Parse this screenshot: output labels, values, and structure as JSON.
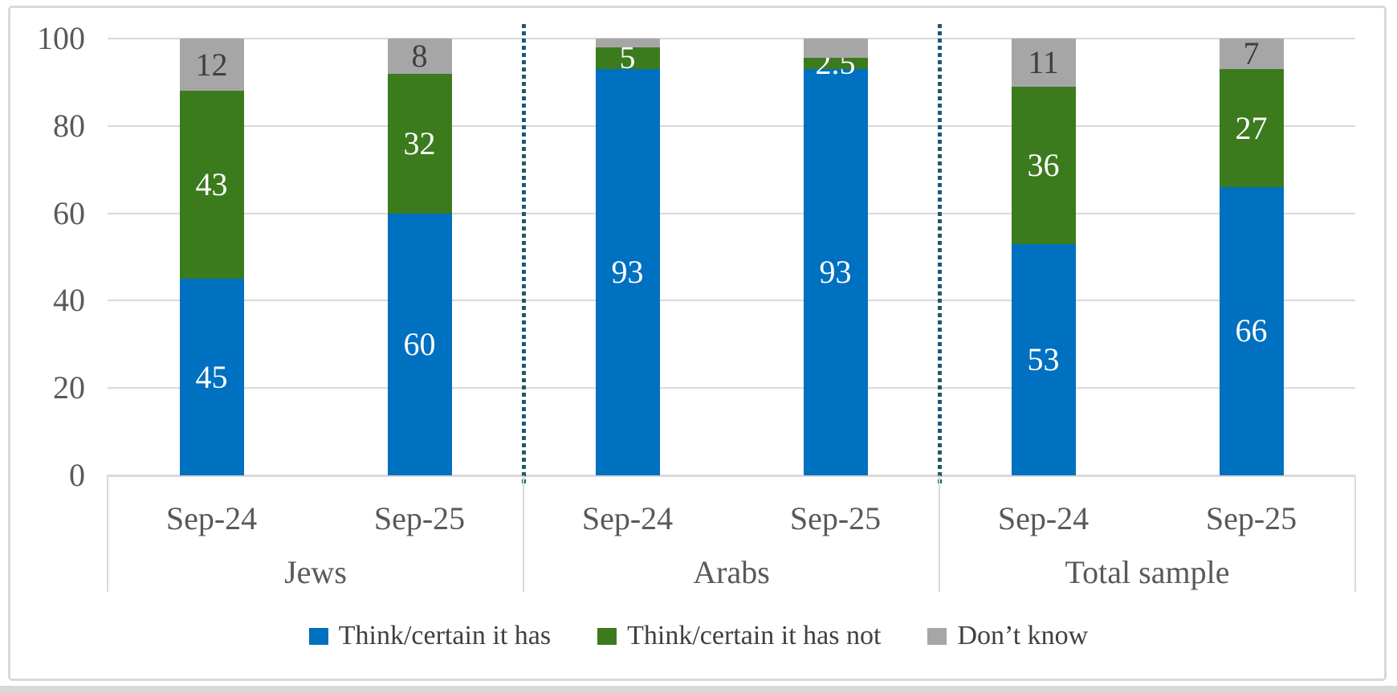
{
  "figure": {
    "background": "#FFFFFF",
    "border_color": "#D9D9D9",
    "grid_color": "#D9D9D9",
    "separator_color": "#1E5A70",
    "tick_text_color": "#595959",
    "dark_label_color": "#3F3F3F",
    "white_label_color": "#FFFFFF",
    "legend_text_color": "#404040"
  },
  "chart_data": {
    "type": "bar",
    "stacked": true,
    "title": "",
    "xlabel": "",
    "ylabel": "",
    "ylim": [
      0,
      100
    ],
    "yticks": [
      "0",
      "20",
      "40",
      "60",
      "80",
      "100"
    ],
    "grid": true,
    "legend_position": "bottom",
    "groups": [
      "Jews",
      "Arabs",
      "Total sample"
    ],
    "categories": [
      "Sep-24",
      "Sep-25",
      "Sep-24",
      "Sep-25",
      "Sep-24",
      "Sep-25"
    ],
    "group_separators_after_category_index": [
      1,
      3
    ],
    "series": [
      {
        "name": "Think/certain it has",
        "color": "#0070C0",
        "values": [
          45,
          60,
          93,
          93,
          53,
          66
        ],
        "labels": [
          "45",
          "60",
          "93",
          "93",
          "53",
          "66"
        ],
        "label_color": "#FFFFFF"
      },
      {
        "name": "Think/certain it has not",
        "color": "#3C7A1E",
        "values": [
          43,
          32,
          5,
          2.5,
          36,
          27
        ],
        "labels": [
          "43",
          "32",
          "5",
          "2.5",
          "36",
          "27"
        ],
        "label_color": "#FFFFFF"
      },
      {
        "name": "Don’t know",
        "color": "#A6A6A6",
        "values": [
          12,
          8,
          2,
          4.5,
          11,
          7
        ],
        "labels": [
          "12",
          "8",
          "",
          "",
          "11",
          "7"
        ],
        "label_color": "#3F3F3F"
      }
    ]
  }
}
